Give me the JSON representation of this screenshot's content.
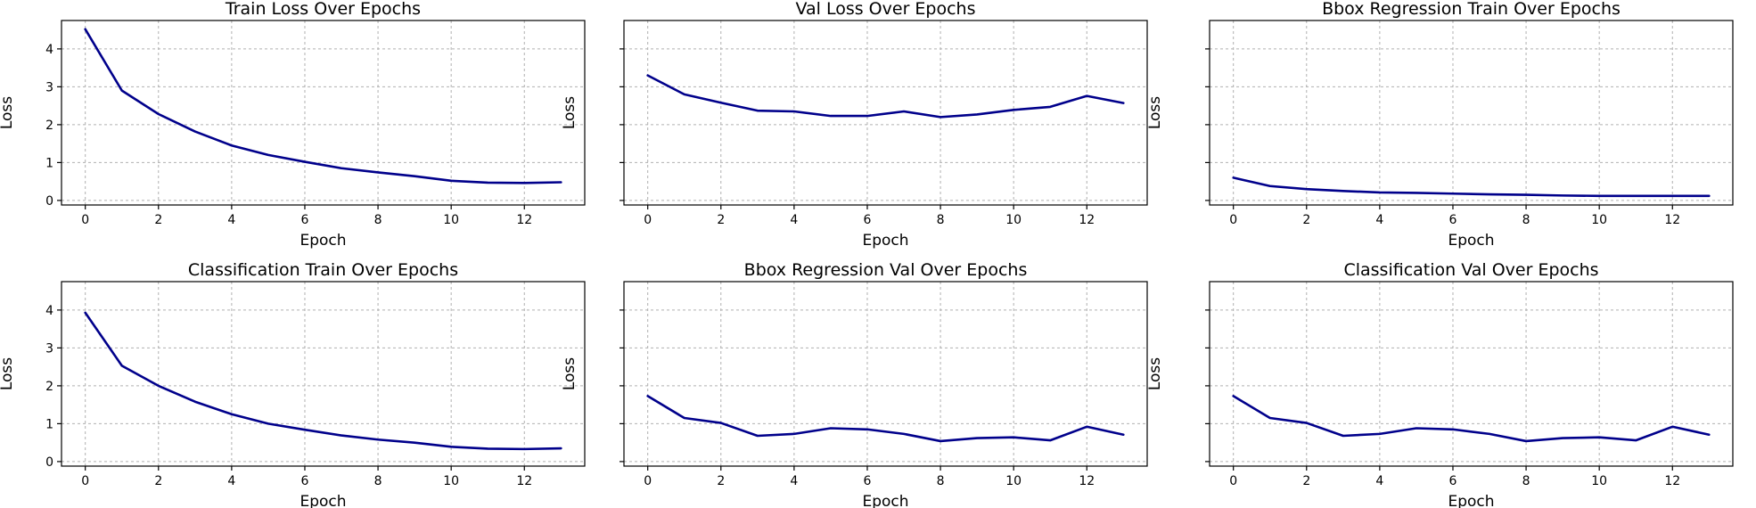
{
  "colors": {
    "series": "#00008b",
    "grid": "#b0b0b0",
    "frame": "#000000"
  },
  "chart_data": [
    {
      "type": "line",
      "title": "Train Loss Over Epochs",
      "xlabel": "Epoch",
      "ylabel": "Loss",
      "x": [
        0,
        1,
        2,
        3,
        4,
        5,
        6,
        7,
        8,
        9,
        10,
        11,
        12,
        13
      ],
      "xticks": [
        0,
        2,
        4,
        6,
        8,
        10,
        12
      ],
      "yticks": [
        0,
        1,
        2,
        3,
        4
      ],
      "show_ytick_labels": true,
      "xlim": [
        -0.65,
        13.65
      ],
      "ylim": [
        -0.12,
        4.75
      ],
      "grid": true,
      "series": [
        {
          "values": [
            4.52,
            2.9,
            2.28,
            1.82,
            1.45,
            1.2,
            1.02,
            0.85,
            0.74,
            0.64,
            0.52,
            0.47,
            0.46,
            0.48
          ]
        }
      ]
    },
    {
      "type": "line",
      "title": "Val Loss Over Epochs",
      "xlabel": "Epoch",
      "ylabel": "Loss",
      "x": [
        0,
        1,
        2,
        3,
        4,
        5,
        6,
        7,
        8,
        9,
        10,
        11,
        12,
        13
      ],
      "xticks": [
        0,
        2,
        4,
        6,
        8,
        10,
        12
      ],
      "yticks": [
        0,
        1,
        2,
        3,
        4
      ],
      "show_ytick_labels": false,
      "xlim": [
        -0.65,
        13.65
      ],
      "ylim": [
        -0.12,
        4.75
      ],
      "grid": true,
      "series": [
        {
          "values": [
            3.3,
            2.8,
            2.58,
            2.37,
            2.35,
            2.23,
            2.23,
            2.35,
            2.2,
            2.27,
            2.39,
            2.47,
            2.76,
            2.57
          ]
        }
      ]
    },
    {
      "type": "line",
      "title": "Bbox Regression Train Over Epochs",
      "xlabel": "Epoch",
      "ylabel": "Loss",
      "x": [
        0,
        1,
        2,
        3,
        4,
        5,
        6,
        7,
        8,
        9,
        10,
        11,
        12,
        13
      ],
      "xticks": [
        0,
        2,
        4,
        6,
        8,
        10,
        12
      ],
      "yticks": [
        0,
        1,
        2,
        3,
        4
      ],
      "show_ytick_labels": false,
      "xlim": [
        -0.65,
        13.65
      ],
      "ylim": [
        -0.12,
        4.75
      ],
      "grid": true,
      "series": [
        {
          "values": [
            0.6,
            0.38,
            0.3,
            0.25,
            0.21,
            0.2,
            0.18,
            0.16,
            0.15,
            0.13,
            0.12,
            0.12,
            0.12,
            0.12
          ]
        }
      ]
    },
    {
      "type": "line",
      "title": "Classification Train Over Epochs",
      "xlabel": "Epoch",
      "ylabel": "Loss",
      "x": [
        0,
        1,
        2,
        3,
        4,
        5,
        6,
        7,
        8,
        9,
        10,
        11,
        12,
        13
      ],
      "xticks": [
        0,
        2,
        4,
        6,
        8,
        10,
        12
      ],
      "yticks": [
        0,
        1,
        2,
        3,
        4
      ],
      "show_ytick_labels": true,
      "xlim": [
        -0.65,
        13.65
      ],
      "ylim": [
        -0.12,
        4.75
      ],
      "grid": true,
      "series": [
        {
          "values": [
            3.93,
            2.53,
            2.0,
            1.58,
            1.25,
            1.0,
            0.84,
            0.69,
            0.58,
            0.5,
            0.39,
            0.34,
            0.33,
            0.35
          ]
        }
      ]
    },
    {
      "type": "line",
      "title": "Bbox Regression Val Over Epochs",
      "xlabel": "Epoch",
      "ylabel": "Loss",
      "x": [
        0,
        1,
        2,
        3,
        4,
        5,
        6,
        7,
        8,
        9,
        10,
        11,
        12,
        13
      ],
      "xticks": [
        0,
        2,
        4,
        6,
        8,
        10,
        12
      ],
      "yticks": [
        0,
        1,
        2,
        3,
        4
      ],
      "show_ytick_labels": false,
      "xlim": [
        -0.65,
        13.65
      ],
      "ylim": [
        -0.12,
        4.75
      ],
      "grid": true,
      "series": [
        {
          "values": [
            1.73,
            1.15,
            1.02,
            0.68,
            0.73,
            0.88,
            0.85,
            0.73,
            0.54,
            0.62,
            0.64,
            0.56,
            0.92,
            0.71
          ]
        }
      ]
    },
    {
      "type": "line",
      "title": "Classification Val Over Epochs",
      "xlabel": "Epoch",
      "ylabel": "Loss",
      "x": [
        0,
        1,
        2,
        3,
        4,
        5,
        6,
        7,
        8,
        9,
        10,
        11,
        12,
        13
      ],
      "xticks": [
        0,
        2,
        4,
        6,
        8,
        10,
        12
      ],
      "yticks": [
        0,
        1,
        2,
        3,
        4
      ],
      "show_ytick_labels": false,
      "xlim": [
        -0.65,
        13.65
      ],
      "ylim": [
        -0.12,
        4.75
      ],
      "grid": true,
      "series": [
        {
          "values": [
            1.73,
            1.15,
            1.02,
            0.68,
            0.73,
            0.88,
            0.85,
            0.73,
            0.54,
            0.62,
            0.64,
            0.56,
            0.92,
            0.71
          ]
        }
      ]
    }
  ]
}
